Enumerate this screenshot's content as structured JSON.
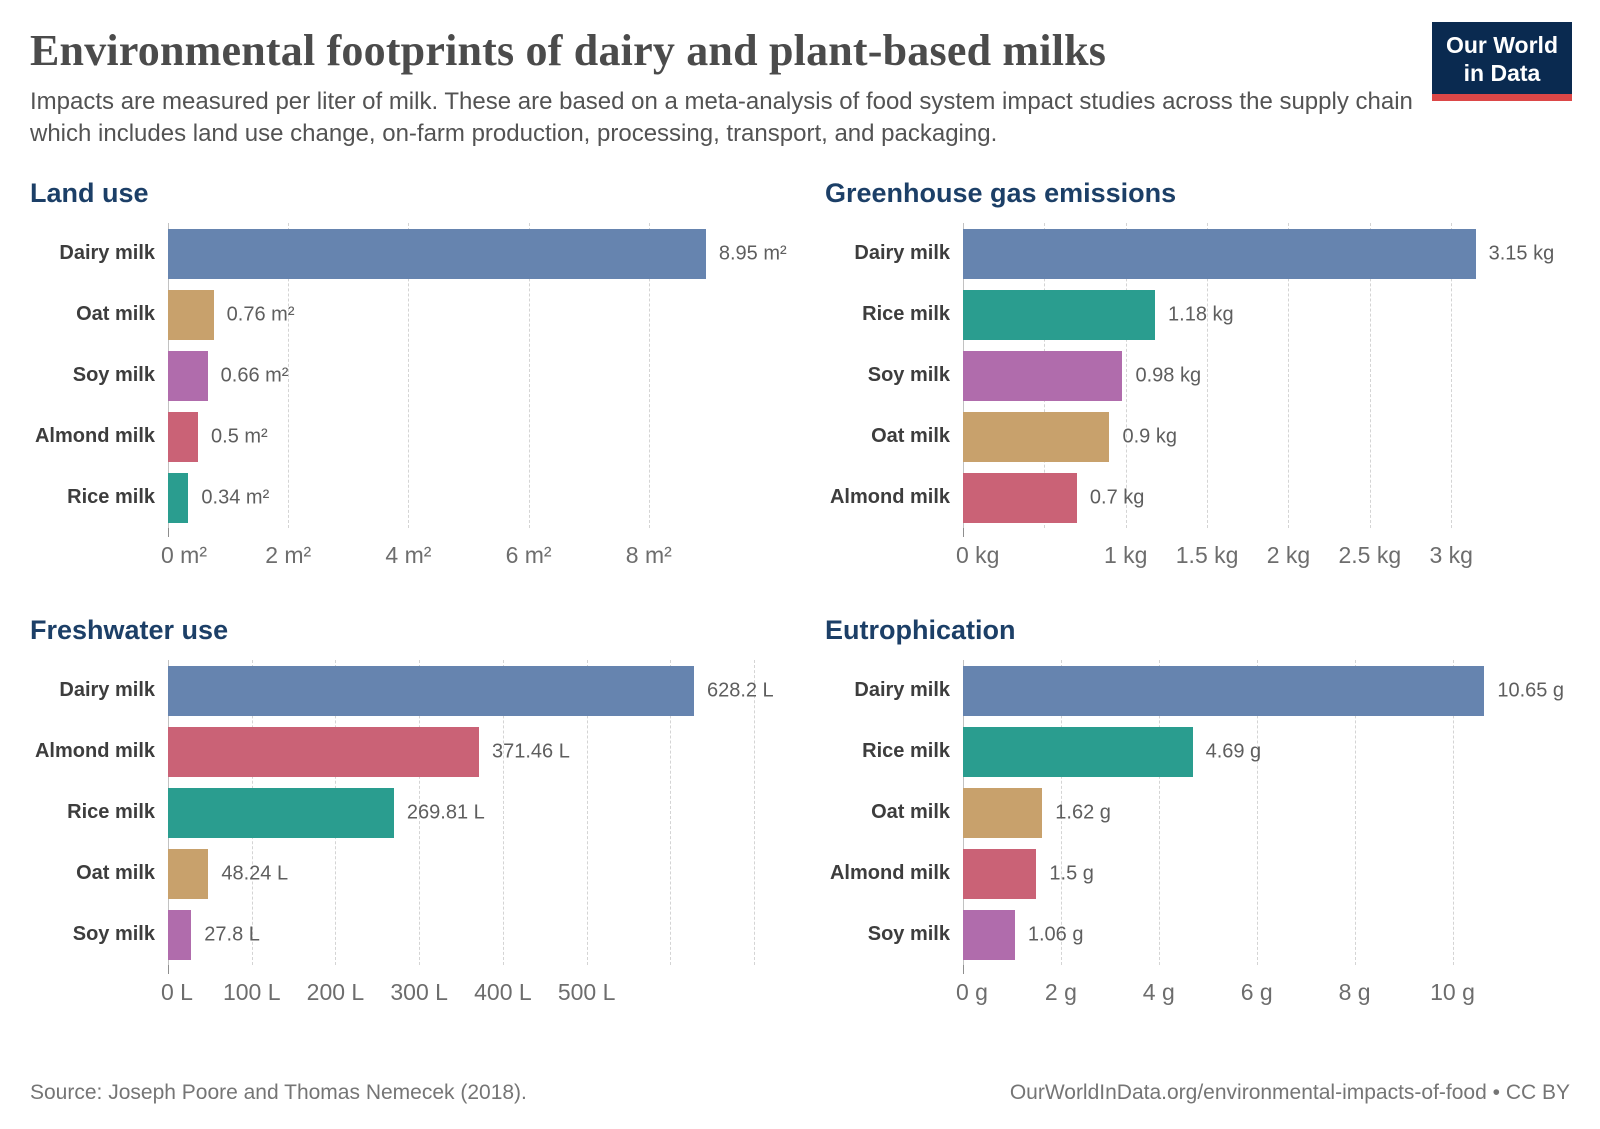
{
  "header": {
    "title": "Environmental footprints of dairy and plant-based milks",
    "subtitle": "Impacts are measured per liter of milk. These are based on a meta-analysis of food system impact studies across the supply chain which includes land use change, on-farm production, processing, transport, and packaging."
  },
  "logo": {
    "line1": "Our World",
    "line2": "in Data",
    "bg_color": "#0a2a50",
    "accent_color": "#dc4747"
  },
  "footer": {
    "source": "Source: Joseph Poore and Thomas Nemecek (2018).",
    "attribution": "OurWorldInData.org/environmental-impacts-of-food • CC BY"
  },
  "colors": {
    "chart_title": "#1c3f67",
    "dairy": "#6684af",
    "oat": "#c8a16c",
    "soy": "#b06cac",
    "almond": "#ca6276",
    "rice": "#2a9d8f"
  },
  "chart_data": [
    {
      "type": "bar",
      "orientation": "horizontal",
      "title": "Land use",
      "unit": "m²",
      "xlabel": "",
      "ylabel": "",
      "grid": true,
      "legend": "none",
      "categories": [
        "Dairy milk",
        "Oat milk",
        "Soy milk",
        "Almond milk",
        "Rice milk"
      ],
      "values": [
        8.95,
        0.76,
        0.66,
        0.5,
        0.34
      ],
      "value_labels": [
        "8.95 m²",
        "0.76 m²",
        "0.66 m²",
        "0.5 m²",
        "0.34 m²"
      ],
      "color_keys": [
        "dairy",
        "oat",
        "soy",
        "almond",
        "rice"
      ],
      "xlim": [
        0,
        10.1
      ],
      "ticks": [
        {
          "v": 0,
          "label": "0 m²"
        },
        {
          "v": 2,
          "label": "2 m²"
        },
        {
          "v": 4,
          "label": "4 m²"
        },
        {
          "v": 6,
          "label": "6 m²"
        },
        {
          "v": 8,
          "label": "8 m²"
        }
      ],
      "gridlines": [
        2,
        4,
        6,
        8
      ]
    },
    {
      "type": "bar",
      "orientation": "horizontal",
      "title": "Greenhouse gas emissions",
      "unit": "kg",
      "xlabel": "",
      "ylabel": "",
      "grid": true,
      "legend": "none",
      "categories": [
        "Dairy milk",
        "Rice milk",
        "Soy milk",
        "Oat milk",
        "Almond milk"
      ],
      "values": [
        3.15,
        1.18,
        0.98,
        0.9,
        0.7
      ],
      "value_labels": [
        "3.15 kg",
        "1.18 kg",
        "0.98 kg",
        "0.9 kg",
        "0.7 kg"
      ],
      "color_keys": [
        "dairy",
        "rice",
        "soy",
        "oat",
        "almond"
      ],
      "xlim": [
        0,
        3.73
      ],
      "ticks": [
        {
          "v": 0,
          "label": "0 kg"
        },
        {
          "v": 1,
          "label": "1 kg"
        },
        {
          "v": 1.5,
          "label": "1.5 kg"
        },
        {
          "v": 2,
          "label": "2 kg"
        },
        {
          "v": 2.5,
          "label": "2.5 kg"
        },
        {
          "v": 3,
          "label": "3 kg"
        }
      ],
      "gridlines": [
        0.5,
        1,
        1.5,
        2,
        2.5,
        3
      ]
    },
    {
      "type": "bar",
      "orientation": "horizontal",
      "title": "Freshwater use",
      "unit": "L",
      "xlabel": "",
      "ylabel": "",
      "grid": true,
      "legend": "none",
      "categories": [
        "Dairy milk",
        "Almond milk",
        "Rice milk",
        "Oat milk",
        "Soy milk"
      ],
      "values": [
        628.2,
        371.46,
        269.81,
        48.24,
        27.8
      ],
      "value_labels": [
        "628.2 L",
        "371.46 L",
        "269.81 L",
        "48.24 L",
        "27.8 L"
      ],
      "color_keys": [
        "dairy",
        "almond",
        "rice",
        "oat",
        "soy"
      ],
      "xlim": [
        0,
        725
      ],
      "ticks": [
        {
          "v": 0,
          "label": "0 L"
        },
        {
          "v": 100,
          "label": "100 L"
        },
        {
          "v": 200,
          "label": "200 L"
        },
        {
          "v": 300,
          "label": "300 L"
        },
        {
          "v": 400,
          "label": "400 L"
        },
        {
          "v": 500,
          "label": "500 L"
        }
      ],
      "gridlines": [
        100,
        200,
        300,
        400,
        500,
        600,
        700
      ]
    },
    {
      "type": "bar",
      "orientation": "horizontal",
      "title": "Eutrophication",
      "unit": "g",
      "xlabel": "",
      "ylabel": "",
      "grid": true,
      "legend": "none",
      "categories": [
        "Dairy milk",
        "Rice milk",
        "Oat milk",
        "Almond milk",
        "Soy milk"
      ],
      "values": [
        10.65,
        4.69,
        1.62,
        1.5,
        1.06
      ],
      "value_labels": [
        "10.65 g",
        "4.69 g",
        "1.62 g",
        "1.5 g",
        "1.06 g"
      ],
      "color_keys": [
        "dairy",
        "rice",
        "oat",
        "almond",
        "soy"
      ],
      "xlim": [
        0,
        12.4
      ],
      "ticks": [
        {
          "v": 0,
          "label": "0 g"
        },
        {
          "v": 2,
          "label": "2 g"
        },
        {
          "v": 4,
          "label": "4 g"
        },
        {
          "v": 6,
          "label": "6 g"
        },
        {
          "v": 8,
          "label": "8 g"
        },
        {
          "v": 10,
          "label": "10 g"
        }
      ],
      "gridlines": [
        2,
        4,
        6,
        8,
        10
      ]
    }
  ]
}
